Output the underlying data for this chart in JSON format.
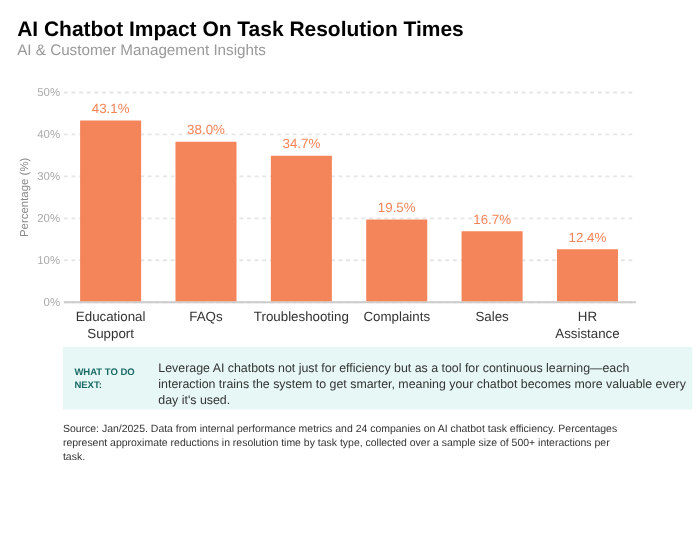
{
  "chart_data": {
    "type": "bar",
    "title": "AI Chatbot Impact On Task Resolution Times",
    "subtitle": "AI & Customer Management Insights",
    "ylabel": "Percentage (%)",
    "categories": [
      "Educational Support",
      "FAQs",
      "Troubleshooting",
      "Complaints",
      "Sales",
      "HR Assistance"
    ],
    "values": [
      43.1,
      38.0,
      34.7,
      19.5,
      16.7,
      12.4
    ],
    "value_labels": [
      "43.1%",
      "38.0%",
      "34.7%",
      "19.5%",
      "16.7%",
      "12.4%"
    ],
    "color": "#f4855a",
    "ylim": [
      0,
      50
    ],
    "yticks": [
      {
        "value": 0,
        "label": "0%"
      },
      {
        "value": 10,
        "label": "10%"
      },
      {
        "value": 20,
        "label": "20%"
      },
      {
        "value": 30,
        "label": "30%"
      },
      {
        "value": 40,
        "label": "40%"
      },
      {
        "value": 50,
        "label": "50%"
      }
    ],
    "grid": "y",
    "annotations": [
      "WHAT TO DO NEXT:",
      "Leverage AI chatbots not just for efficiency but as a tool for continuous learning—each interaction trains the system to get smarter, meaning your chatbot becomes more valuable every day it's used.",
      "Source: Jan/2025. Data from internal performance metrics and 24 companies on AI chatbot task efficiency. Percentages represent approximate reductions in resolution time by task type, collected over a sample size of 500+ interactions per task."
    ]
  }
}
